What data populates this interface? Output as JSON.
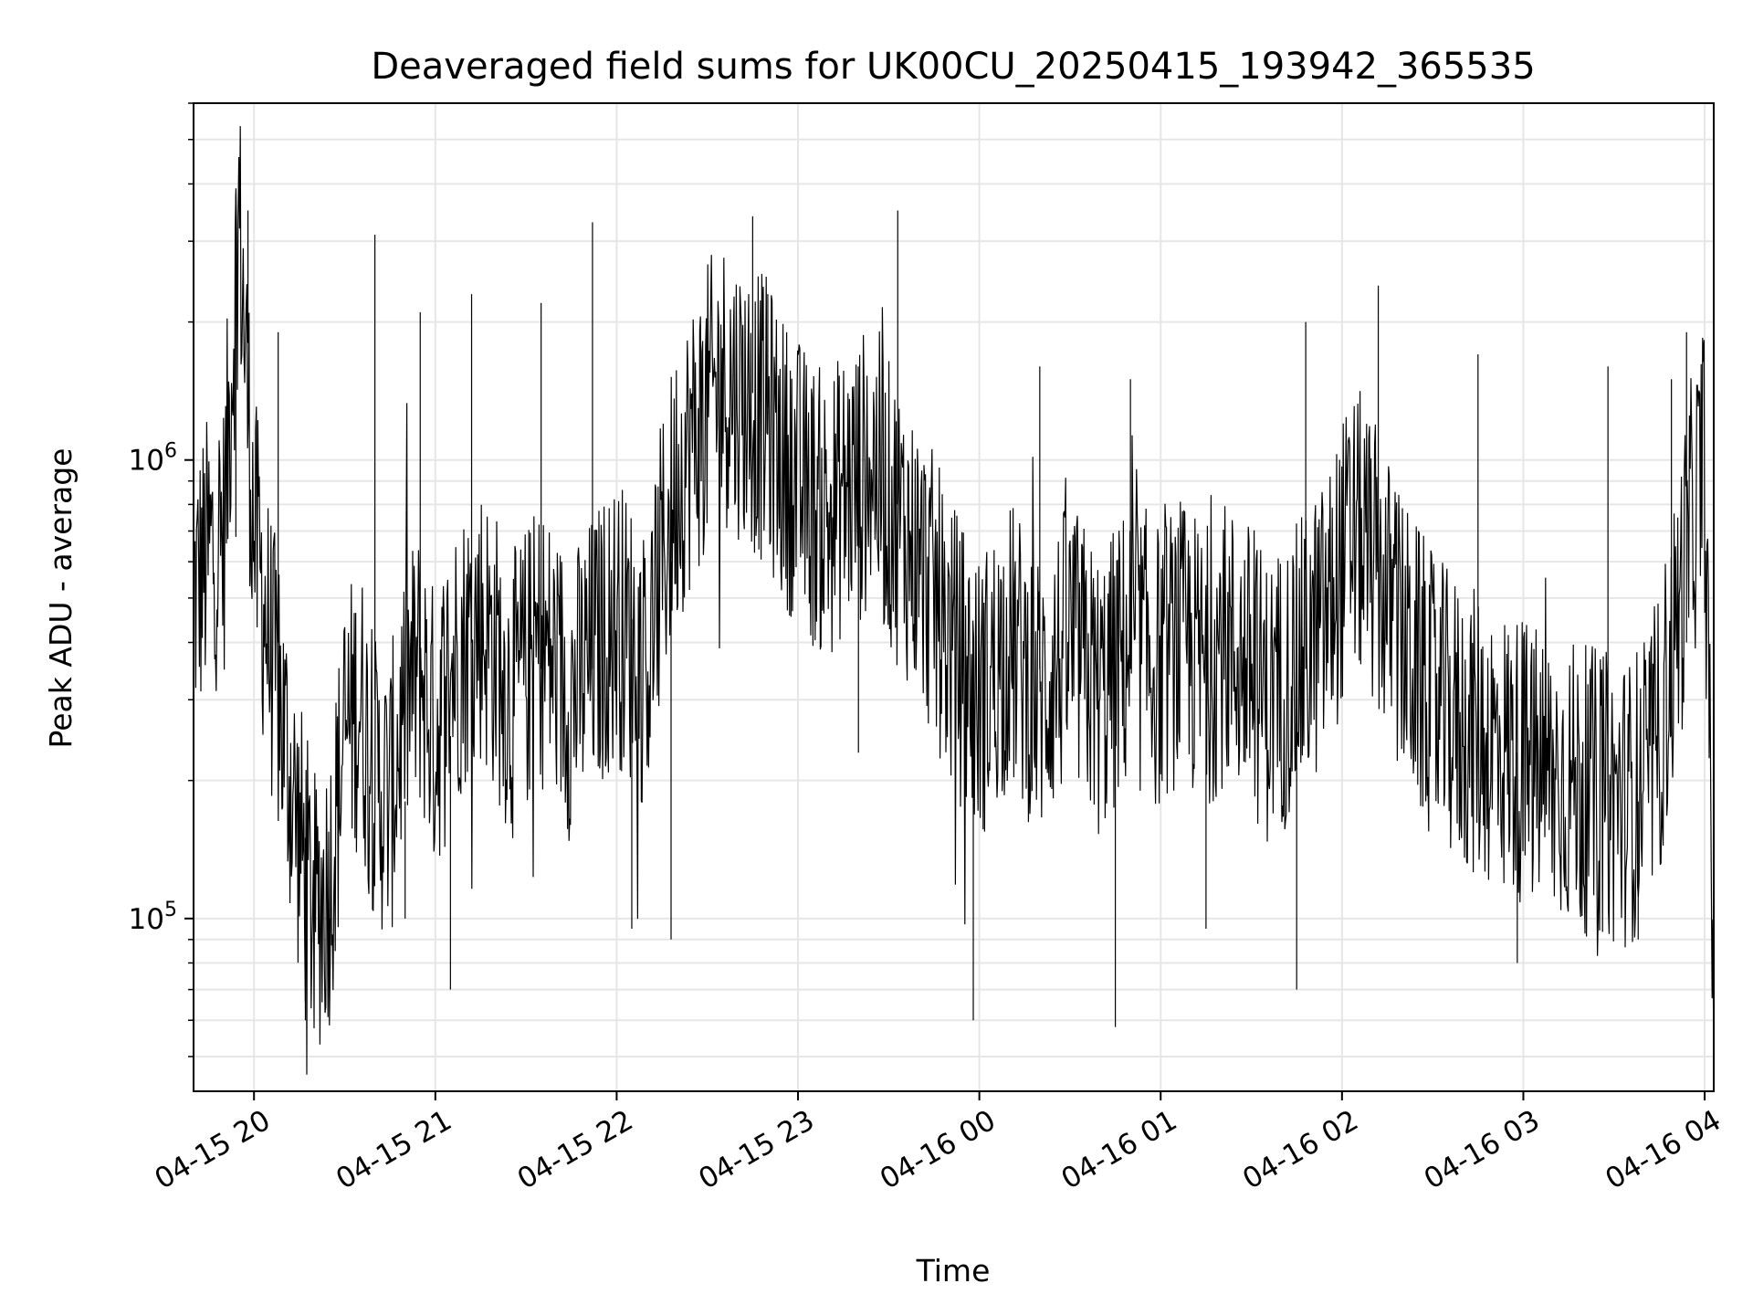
{
  "chart_data": {
    "type": "line",
    "title": "Deaveraged field sums for UK00CU_20250415_193942_365535",
    "xlabel": "Time",
    "ylabel": "Peak ADU - average",
    "yscale": "log",
    "xlim": [
      "2025-04-15 19:40",
      "2025-04-16 04:03"
    ],
    "ylim": [
      42000,
      6000000
    ],
    "grid": true,
    "line_color": "#000000",
    "grid_color": "#e6e6e6",
    "x_ticks": [
      {
        "label": "04-15 20",
        "value": "2025-04-15 20:00"
      },
      {
        "label": "04-15 21",
        "value": "2025-04-15 21:00"
      },
      {
        "label": "04-15 22",
        "value": "2025-04-15 22:00"
      },
      {
        "label": "04-15 23",
        "value": "2025-04-15 23:00"
      },
      {
        "label": "04-16 00",
        "value": "2025-04-16 00:00"
      },
      {
        "label": "04-16 01",
        "value": "2025-04-16 01:00"
      },
      {
        "label": "04-16 02",
        "value": "2025-04-16 02:00"
      },
      {
        "label": "04-16 03",
        "value": "2025-04-16 03:00"
      },
      {
        "label": "04-16 04",
        "value": "2025-04-16 04:00"
      }
    ],
    "y_ticks": [
      {
        "base": "10",
        "exp": "5",
        "value": 100000
      },
      {
        "base": "10",
        "exp": "6",
        "value": 1000000
      }
    ],
    "series": [
      {
        "x": [
          "2025-04-15 19:40",
          "2025-04-15 19:45",
          "2025-04-15 19:50",
          "2025-04-15 19:55",
          "2025-04-15 20:00",
          "2025-04-15 20:05",
          "2025-04-15 20:10",
          "2025-04-15 20:15",
          "2025-04-15 20:20",
          "2025-04-15 20:25",
          "2025-04-15 20:30",
          "2025-04-15 20:35",
          "2025-04-15 20:40",
          "2025-04-15 20:45",
          "2025-04-15 20:50",
          "2025-04-15 20:55",
          "2025-04-15 21:00",
          "2025-04-15 21:05",
          "2025-04-15 21:10",
          "2025-04-15 21:15",
          "2025-04-15 21:20",
          "2025-04-15 21:25",
          "2025-04-15 21:30",
          "2025-04-15 21:35",
          "2025-04-15 21:40",
          "2025-04-15 21:45",
          "2025-04-15 21:50",
          "2025-04-15 21:55",
          "2025-04-15 22:00",
          "2025-04-15 22:05",
          "2025-04-15 22:10",
          "2025-04-15 22:15",
          "2025-04-15 22:20",
          "2025-04-15 22:25",
          "2025-04-15 22:30",
          "2025-04-15 22:35",
          "2025-04-15 22:40",
          "2025-04-15 22:45",
          "2025-04-15 22:50",
          "2025-04-15 22:55",
          "2025-04-15 23:00",
          "2025-04-15 23:05",
          "2025-04-15 23:10",
          "2025-04-15 23:15",
          "2025-04-15 23:20",
          "2025-04-15 23:25",
          "2025-04-15 23:30",
          "2025-04-15 23:35",
          "2025-04-15 23:40",
          "2025-04-15 23:45",
          "2025-04-15 23:50",
          "2025-04-15 23:55",
          "2025-04-16 00:00",
          "2025-04-16 00:05",
          "2025-04-16 00:10",
          "2025-04-16 00:15",
          "2025-04-16 00:20",
          "2025-04-16 00:25",
          "2025-04-16 00:30",
          "2025-04-16 00:35",
          "2025-04-16 00:40",
          "2025-04-16 00:45",
          "2025-04-16 00:50",
          "2025-04-16 00:55",
          "2025-04-16 01:00",
          "2025-04-16 01:05",
          "2025-04-16 01:10",
          "2025-04-16 01:15",
          "2025-04-16 01:20",
          "2025-04-16 01:25",
          "2025-04-16 01:30",
          "2025-04-16 01:35",
          "2025-04-16 01:40",
          "2025-04-16 01:45",
          "2025-04-16 01:50",
          "2025-04-16 01:55",
          "2025-04-16 02:00",
          "2025-04-16 02:05",
          "2025-04-16 02:10",
          "2025-04-16 02:15",
          "2025-04-16 02:20",
          "2025-04-16 02:25",
          "2025-04-16 02:30",
          "2025-04-16 02:35",
          "2025-04-16 02:40",
          "2025-04-16 02:45",
          "2025-04-16 02:50",
          "2025-04-16 02:55",
          "2025-04-16 03:00",
          "2025-04-16 03:05",
          "2025-04-16 03:10",
          "2025-04-16 03:15",
          "2025-04-16 03:20",
          "2025-04-16 03:25",
          "2025-04-16 03:30",
          "2025-04-16 03:35",
          "2025-04-16 03:40",
          "2025-04-16 03:45",
          "2025-04-16 03:50",
          "2025-04-16 03:55",
          "2025-04-16 04:00",
          "2025-04-16 04:03"
        ],
        "y": [
          500000,
          620000,
          680000,
          3500000,
          700000,
          400000,
          250000,
          150000,
          100000,
          120000,
          250000,
          300000,
          200000,
          180000,
          300000,
          350000,
          250000,
          350000,
          400000,
          450000,
          380000,
          300000,
          350000,
          400000,
          350000,
          300000,
          350000,
          400000,
          450000,
          400000,
          350000,
          600000,
          900000,
          1100000,
          1300000,
          1500000,
          1400000,
          1300000,
          1200000,
          1000000,
          900000,
          800000,
          750000,
          850000,
          900000,
          1000000,
          800000,
          700000,
          600000,
          500000,
          400000,
          350000,
          300000,
          350000,
          400000,
          350000,
          300000,
          350000,
          400000,
          350000,
          300000,
          350000,
          400000,
          380000,
          350000,
          400000,
          380000,
          350000,
          400000,
          380000,
          350000,
          300000,
          320000,
          350000,
          400000,
          450000,
          600000,
          700000,
          600000,
          500000,
          400000,
          350000,
          300000,
          280000,
          260000,
          250000,
          240000,
          230000,
          220000,
          210000,
          200000,
          200000,
          190000,
          190000,
          180000,
          180000,
          200000,
          250000,
          400000,
          700000,
          1000000,
          60000
        ]
      }
    ],
    "spikes": [
      {
        "x": "2025-04-15 19:54",
        "y": 3800000
      },
      {
        "x": "2025-04-15 19:58",
        "y": 1800000
      },
      {
        "x": "2025-04-15 20:08",
        "y": 1900000
      },
      {
        "x": "2025-04-15 20:17",
        "y": 60000
      },
      {
        "x": "2025-04-15 20:25",
        "y": 70000
      },
      {
        "x": "2025-04-15 20:40",
        "y": 3100000
      },
      {
        "x": "2025-04-15 20:50",
        "y": 100000
      },
      {
        "x": "2025-04-15 20:55",
        "y": 2100000
      },
      {
        "x": "2025-04-15 21:05",
        "y": 70000
      },
      {
        "x": "2025-04-15 21:12",
        "y": 2300000
      },
      {
        "x": "2025-04-15 21:35",
        "y": 2200000
      },
      {
        "x": "2025-04-15 21:52",
        "y": 3300000
      },
      {
        "x": "2025-04-15 22:05",
        "y": 95000
      },
      {
        "x": "2025-04-15 22:18",
        "y": 90000
      },
      {
        "x": "2025-04-15 22:45",
        "y": 3400000
      },
      {
        "x": "2025-04-15 22:50",
        "y": 2300000
      },
      {
        "x": "2025-04-15 23:20",
        "y": 230000
      },
      {
        "x": "2025-04-15 23:33",
        "y": 3500000
      },
      {
        "x": "2025-04-15 23:58",
        "y": 60000
      },
      {
        "x": "2025-04-16 00:20",
        "y": 1600000
      },
      {
        "x": "2025-04-16 00:45",
        "y": 58000
      },
      {
        "x": "2025-04-16 00:50",
        "y": 1500000
      },
      {
        "x": "2025-04-16 01:15",
        "y": 95000
      },
      {
        "x": "2025-04-16 01:45",
        "y": 70000
      },
      {
        "x": "2025-04-16 01:48",
        "y": 2000000
      },
      {
        "x": "2025-04-16 02:12",
        "y": 2400000
      },
      {
        "x": "2025-04-16 02:45",
        "y": 1700000
      },
      {
        "x": "2025-04-16 02:58",
        "y": 80000
      },
      {
        "x": "2025-04-16 03:28",
        "y": 1600000
      },
      {
        "x": "2025-04-16 03:38",
        "y": 90000
      },
      {
        "x": "2025-04-16 03:49",
        "y": 1500000
      },
      {
        "x": "2025-04-16 03:54",
        "y": 1900000
      },
      {
        "x": "2025-04-16 04:03",
        "y": 50000
      }
    ]
  }
}
